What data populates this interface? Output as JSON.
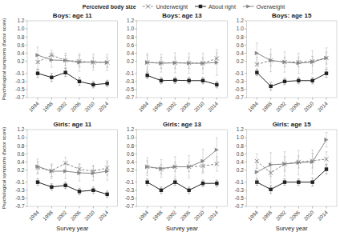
{
  "chart_data": [
    {
      "type": "line",
      "title": "Boys: age 11",
      "ylabel": "Psychological symptoms (factor score)",
      "legend": "top",
      "legend_title": "Perceived body size",
      "grid": false,
      "x": [
        1994,
        1998,
        2002,
        2006,
        2010,
        2014
      ],
      "xlim": [
        1991,
        2017
      ],
      "xticks": [
        1994,
        1998,
        2002,
        2006,
        2010,
        2014
      ],
      "ylim": [
        -0.7,
        1.2
      ],
      "yticks": [
        -0.7,
        -0.5,
        -0.3,
        -0.1,
        0.2,
        0.4,
        0.6,
        0.8,
        {
          "value": 1,
          "label": "1.0"
        },
        1.2
      ],
      "series": [
        {
          "name": "Underweight",
          "color": "#888888",
          "line_style": "dashed",
          "marker": "x",
          "values": [
            0.18,
            0.35,
            0.22,
            0.2,
            0.17,
            0.17
          ],
          "error": [
            0.18,
            0.12,
            0.12,
            0.14,
            0.12,
            0.12
          ]
        },
        {
          "name": "About right",
          "color": "#222222",
          "line_style": "solid",
          "marker": "square",
          "values": [
            -0.1,
            -0.2,
            -0.08,
            -0.3,
            -0.38,
            -0.35
          ],
          "error": [
            0.1,
            0.1,
            0.1,
            0.1,
            0.08,
            0.08
          ]
        },
        {
          "name": "Overweight",
          "color": "#888888",
          "line_style": "solid",
          "marker": "triangle-right",
          "values": [
            0.35,
            0.23,
            0.22,
            0.17,
            0.18,
            0.17
          ],
          "error": [
            0.2,
            0.18,
            0.18,
            0.22,
            0.2,
            0.2
          ]
        }
      ]
    },
    {
      "type": "line",
      "title": "Boys: age 13",
      "grid": false,
      "x": [
        1994,
        1998,
        2002,
        2006,
        2010,
        2014
      ],
      "xlim": [
        1991,
        2017
      ],
      "xticks": [
        1994,
        1998,
        2002,
        2006,
        2010,
        2014
      ],
      "ylim": [
        -0.7,
        1.2
      ],
      "yticks": [
        -0.7,
        -0.5,
        -0.3,
        -0.1,
        0.2,
        0.4,
        0.6,
        0.8,
        {
          "value": 1,
          "label": "1.0"
        },
        1.2
      ],
      "series": [
        {
          "name": "Underweight",
          "color": "#888888",
          "line_style": "dashed",
          "marker": "x",
          "values": [
            0.17,
            0.16,
            0.16,
            0.16,
            0.15,
            0.27
          ],
          "error": [
            0.18,
            0.14,
            0.14,
            0.14,
            0.14,
            0.14
          ]
        },
        {
          "name": "About right",
          "color": "#222222",
          "line_style": "solid",
          "marker": "square",
          "values": [
            -0.15,
            -0.28,
            -0.27,
            -0.28,
            -0.28,
            -0.38
          ],
          "error": [
            0.08,
            0.08,
            0.08,
            0.08,
            0.08,
            0.08
          ]
        },
        {
          "name": "Overweight",
          "color": "#888888",
          "line_style": "solid",
          "marker": "triangle-right",
          "values": [
            0.17,
            0.15,
            0.16,
            0.15,
            0.15,
            0.17
          ],
          "error": [
            0.22,
            0.22,
            0.25,
            0.25,
            0.25,
            0.32
          ]
        }
      ]
    },
    {
      "type": "line",
      "title": "Boys: age 15",
      "grid": false,
      "x": [
        1994,
        1998,
        2002,
        2006,
        2010,
        2014
      ],
      "xlim": [
        1991,
        2017
      ],
      "xticks": [
        1994,
        1998,
        2002,
        2006,
        2010,
        2014
      ],
      "ylim": [
        -0.7,
        1.2
      ],
      "yticks": [
        -0.7,
        -0.5,
        -0.3,
        -0.1,
        0.2,
        0.4,
        0.6,
        0.8,
        {
          "value": 1,
          "label": "1.0"
        },
        1.2
      ],
      "series": [
        {
          "name": "Underweight",
          "color": "#888888",
          "line_style": "dashed",
          "marker": "x",
          "values": [
            0.12,
            0.22,
            0.18,
            0.18,
            0.2,
            0.28
          ],
          "error": [
            0.18,
            0.15,
            0.12,
            0.12,
            0.12,
            0.15
          ]
        },
        {
          "name": "About right",
          "color": "#222222",
          "line_style": "solid",
          "marker": "square",
          "values": [
            -0.08,
            -0.42,
            -0.3,
            -0.28,
            -0.28,
            -0.1
          ],
          "error": [
            0.08,
            0.1,
            0.08,
            0.08,
            0.08,
            0.1
          ]
        },
        {
          "name": "Overweight",
          "color": "#888888",
          "line_style": "solid",
          "marker": "triangle-right",
          "values": [
            0.4,
            0.22,
            0.18,
            0.15,
            0.18,
            0.28
          ],
          "error": [
            0.25,
            0.28,
            0.25,
            0.25,
            0.28,
            0.25
          ]
        }
      ]
    },
    {
      "type": "line",
      "title": "Girls: age 11",
      "xlabel": "Survey year",
      "ylabel": "Psychological symptoms (factor score)",
      "grid": false,
      "x": [
        1994,
        1998,
        2002,
        2006,
        2010,
        2014
      ],
      "xlim": [
        1991,
        2017
      ],
      "xticks": [
        1994,
        1998,
        2002,
        2006,
        2010,
        2014
      ],
      "ylim": [
        -0.7,
        1.2
      ],
      "yticks": [
        -0.7,
        -0.5,
        -0.3,
        -0.1,
        0.2,
        0.4,
        0.6,
        0.8,
        {
          "value": 1,
          "label": "1.0"
        },
        1.2
      ],
      "series": [
        {
          "name": "Underweight",
          "color": "#888888",
          "line_style": "dashed",
          "marker": "x",
          "values": [
            0.26,
            0.18,
            0.37,
            0.22,
            0.17,
            0.25
          ],
          "error": [
            0.15,
            0.14,
            0.15,
            0.14,
            0.14,
            0.18
          ]
        },
        {
          "name": "About right",
          "color": "#222222",
          "line_style": "solid",
          "marker": "square",
          "values": [
            -0.1,
            -0.22,
            -0.18,
            -0.33,
            -0.3,
            -0.4
          ],
          "error": [
            0.08,
            0.08,
            0.08,
            0.08,
            0.08,
            0.08
          ]
        },
        {
          "name": "Overweight",
          "color": "#888888",
          "line_style": "solid",
          "marker": "triangle-right",
          "values": [
            0.29,
            0.17,
            0.17,
            0.13,
            0.12,
            0.17
          ],
          "error": [
            0.18,
            0.18,
            0.18,
            0.2,
            0.18,
            0.22
          ]
        }
      ]
    },
    {
      "type": "line",
      "title": "Girls: age 13",
      "xlabel": "Survey year",
      "grid": false,
      "x": [
        1994,
        1998,
        2002,
        2006,
        2010,
        2014
      ],
      "xlim": [
        1991,
        2017
      ],
      "xticks": [
        1994,
        1998,
        2002,
        2006,
        2010,
        2014
      ],
      "ylim": [
        -0.7,
        1.2
      ],
      "yticks": [
        -0.7,
        -0.5,
        -0.3,
        -0.1,
        0.2,
        0.4,
        0.6,
        0.8,
        {
          "value": 1,
          "label": "1.0"
        },
        1.2
      ],
      "series": [
        {
          "name": "Underweight",
          "color": "#888888",
          "line_style": "dashed",
          "marker": "x",
          "values": [
            0.28,
            0.22,
            0.28,
            0.28,
            0.3,
            0.35
          ],
          "error": [
            0.15,
            0.12,
            0.12,
            0.12,
            0.15,
            0.18
          ]
        },
        {
          "name": "About right",
          "color": "#222222",
          "line_style": "solid",
          "marker": "square",
          "values": [
            -0.1,
            -0.3,
            -0.1,
            -0.3,
            -0.13,
            -0.13
          ],
          "error": [
            0.08,
            0.08,
            0.08,
            0.08,
            0.08,
            0.08
          ]
        },
        {
          "name": "Overweight",
          "color": "#888888",
          "line_style": "solid",
          "marker": "triangle-right",
          "values": [
            0.28,
            0.24,
            0.28,
            0.28,
            0.42,
            0.7
          ],
          "error": [
            0.22,
            0.22,
            0.25,
            0.28,
            0.3,
            0.3
          ]
        }
      ]
    },
    {
      "type": "line",
      "title": "Girls: age 15",
      "xlabel": "Survey year",
      "grid": false,
      "x": [
        1994,
        1998,
        2002,
        2006,
        2010,
        2014
      ],
      "xlim": [
        1991,
        2017
      ],
      "xticks": [
        1994,
        1998,
        2002,
        2006,
        2010,
        2014
      ],
      "ylim": [
        -0.7,
        1.2
      ],
      "yticks": [
        -0.7,
        -0.5,
        -0.3,
        -0.1,
        0.2,
        0.4,
        0.6,
        0.8,
        {
          "value": 1,
          "label": "1.0"
        },
        1.2
      ],
      "series": [
        {
          "name": "Underweight",
          "color": "#888888",
          "line_style": "dashed",
          "marker": "x",
          "values": [
            0.42,
            0.13,
            0.35,
            0.4,
            0.43,
            0.47
          ],
          "error": [
            0.18,
            0.25,
            0.18,
            0.15,
            0.18,
            0.18
          ]
        },
        {
          "name": "About right",
          "color": "#222222",
          "line_style": "solid",
          "marker": "square",
          "values": [
            -0.1,
            -0.28,
            -0.1,
            -0.1,
            -0.1,
            0.22
          ],
          "error": [
            0.08,
            0.1,
            0.08,
            0.08,
            0.1,
            0.12
          ]
        },
        {
          "name": "Overweight",
          "color": "#888888",
          "line_style": "solid",
          "marker": "triangle-right",
          "values": [
            0.15,
            0.33,
            0.35,
            0.38,
            0.4,
            0.95
          ],
          "error": [
            0.28,
            0.3,
            0.3,
            0.3,
            0.3,
            0.18
          ]
        }
      ]
    }
  ]
}
